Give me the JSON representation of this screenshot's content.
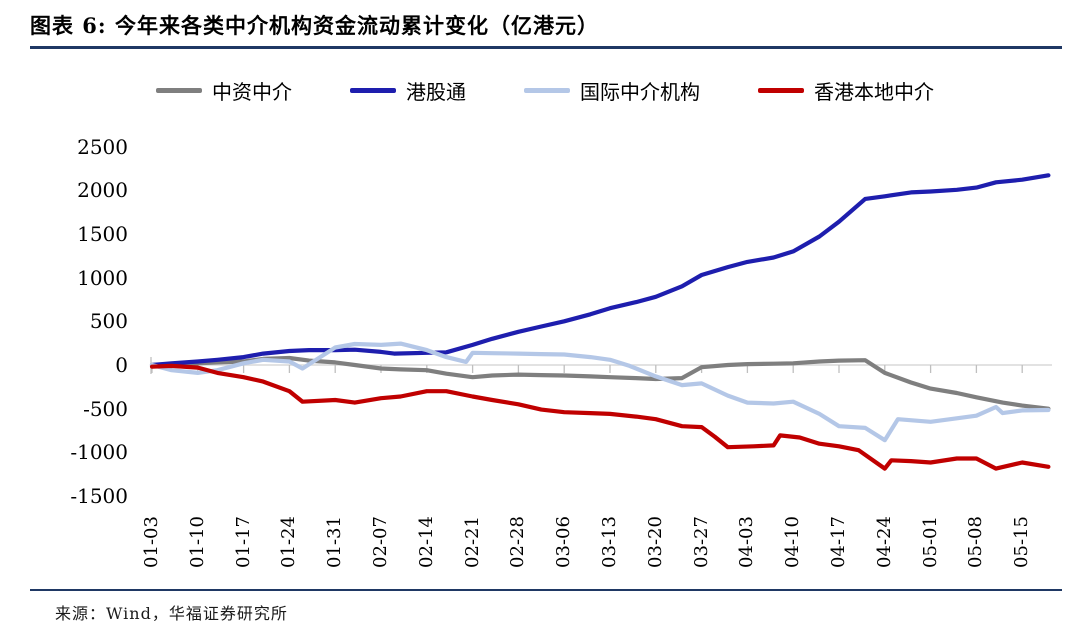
{
  "header": {
    "title": "图表 6:  今年来各类中介机构资金流动累计变化（亿港元）"
  },
  "footer": {
    "source": "来源：Wind，华福证券研究所"
  },
  "colors": {
    "rule_navy": "#1F3864",
    "zero_gridline": "#D9D9D9",
    "tick": "#BFBFBF",
    "background": "#FFFFFF"
  },
  "chart_data": {
    "type": "line",
    "title": "今年来各类中介机构资金流动累计变化",
    "unit": "亿港元",
    "xlabel": "",
    "ylabel": "",
    "ylim": [
      -1500,
      2500
    ],
    "yticks": [
      2500,
      2000,
      1500,
      1000,
      500,
      0,
      -500,
      -1000,
      -1500
    ],
    "x_tick_labels": [
      "01-03",
      "01-10",
      "01-17",
      "01-24",
      "01-31",
      "02-07",
      "02-14",
      "02-21",
      "02-28",
      "03-06",
      "03-13",
      "03-20",
      "03-27",
      "04-03",
      "04-10",
      "04-17",
      "04-24",
      "05-01",
      "05-08",
      "05-15"
    ],
    "grid": "single horizontal gridline at 0 with weekly tick marks",
    "legend_position": "top",
    "series": [
      {
        "name": "中资中介",
        "color": "#7F7F7F",
        "points": [
          [
            "01-03",
            0
          ],
          [
            "01-06",
            10
          ],
          [
            "01-10",
            20
          ],
          [
            "01-13",
            30
          ],
          [
            "01-17",
            40
          ],
          [
            "01-20",
            70
          ],
          [
            "01-24",
            80
          ],
          [
            "01-27",
            50
          ],
          [
            "01-31",
            30
          ],
          [
            "02-03",
            0
          ],
          [
            "02-07",
            -40
          ],
          [
            "02-10",
            -50
          ],
          [
            "02-14",
            -60
          ],
          [
            "02-17",
            -100
          ],
          [
            "02-21",
            -140
          ],
          [
            "02-24",
            -120
          ],
          [
            "02-28",
            -110
          ],
          [
            "03-03",
            -115
          ],
          [
            "03-06",
            -120
          ],
          [
            "03-10",
            -130
          ],
          [
            "03-13",
            -140
          ],
          [
            "03-17",
            -150
          ],
          [
            "03-20",
            -160
          ],
          [
            "03-24",
            -150
          ],
          [
            "03-27",
            -25
          ],
          [
            "03-31",
            0
          ],
          [
            "04-03",
            10
          ],
          [
            "04-07",
            15
          ],
          [
            "04-10",
            20
          ],
          [
            "04-14",
            40
          ],
          [
            "04-17",
            50
          ],
          [
            "04-21",
            55
          ],
          [
            "04-24",
            -90
          ],
          [
            "04-28",
            -200
          ],
          [
            "05-01",
            -270
          ],
          [
            "05-05",
            -320
          ],
          [
            "05-08",
            -370
          ],
          [
            "05-12",
            -430
          ],
          [
            "05-15",
            -465
          ],
          [
            "05-19",
            -500
          ]
        ]
      },
      {
        "name": "港股通",
        "color": "#1E1EAE",
        "points": [
          [
            "01-03",
            0
          ],
          [
            "01-06",
            20
          ],
          [
            "01-10",
            40
          ],
          [
            "01-13",
            60
          ],
          [
            "01-17",
            90
          ],
          [
            "01-20",
            130
          ],
          [
            "01-24",
            160
          ],
          [
            "01-27",
            170
          ],
          [
            "01-31",
            170
          ],
          [
            "02-03",
            175
          ],
          [
            "02-07",
            150
          ],
          [
            "02-09",
            130
          ],
          [
            "02-14",
            140
          ],
          [
            "02-17",
            145
          ],
          [
            "02-21",
            230
          ],
          [
            "02-24",
            300
          ],
          [
            "02-28",
            380
          ],
          [
            "03-03",
            440
          ],
          [
            "03-06",
            500
          ],
          [
            "03-10",
            580
          ],
          [
            "03-13",
            650
          ],
          [
            "03-17",
            720
          ],
          [
            "03-20",
            780
          ],
          [
            "03-24",
            900
          ],
          [
            "03-27",
            1030
          ],
          [
            "03-31",
            1120
          ],
          [
            "04-03",
            1180
          ],
          [
            "04-07",
            1230
          ],
          [
            "04-10",
            1300
          ],
          [
            "04-14",
            1470
          ],
          [
            "04-17",
            1640
          ],
          [
            "04-21",
            1900
          ],
          [
            "04-24",
            1930
          ],
          [
            "04-28",
            1975
          ],
          [
            "05-01",
            1985
          ],
          [
            "05-05",
            2005
          ],
          [
            "05-08",
            2030
          ],
          [
            "05-11",
            2090
          ],
          [
            "05-15",
            2120
          ],
          [
            "05-19",
            2170
          ]
        ]
      },
      {
        "name": "国际中介机构",
        "color": "#B4C7E7",
        "points": [
          [
            "01-03",
            0
          ],
          [
            "01-06",
            -60
          ],
          [
            "01-10",
            -90
          ],
          [
            "01-13",
            -60
          ],
          [
            "01-17",
            20
          ],
          [
            "01-20",
            60
          ],
          [
            "01-24",
            40
          ],
          [
            "01-26",
            -40
          ],
          [
            "01-31",
            200
          ],
          [
            "02-03",
            240
          ],
          [
            "02-07",
            230
          ],
          [
            "02-10",
            245
          ],
          [
            "02-14",
            170
          ],
          [
            "02-17",
            90
          ],
          [
            "02-20",
            35
          ],
          [
            "02-21",
            140
          ],
          [
            "02-24",
            135
          ],
          [
            "02-28",
            130
          ],
          [
            "03-03",
            125
          ],
          [
            "03-06",
            120
          ],
          [
            "03-10",
            90
          ],
          [
            "03-13",
            60
          ],
          [
            "03-16",
            -10
          ],
          [
            "03-20",
            -130
          ],
          [
            "03-24",
            -230
          ],
          [
            "03-27",
            -210
          ],
          [
            "03-31",
            -350
          ],
          [
            "04-03",
            -430
          ],
          [
            "04-07",
            -440
          ],
          [
            "04-10",
            -420
          ],
          [
            "04-14",
            -560
          ],
          [
            "04-17",
            -700
          ],
          [
            "04-21",
            -720
          ],
          [
            "04-24",
            -860
          ],
          [
            "04-26",
            -620
          ],
          [
            "05-01",
            -650
          ],
          [
            "05-05",
            -610
          ],
          [
            "05-08",
            -580
          ],
          [
            "05-11",
            -480
          ],
          [
            "05-12",
            -550
          ],
          [
            "05-15",
            -520
          ],
          [
            "05-19",
            -515
          ]
        ]
      },
      {
        "name": "香港本地中介",
        "color": "#C00000",
        "points": [
          [
            "01-03",
            -20
          ],
          [
            "01-06",
            -10
          ],
          [
            "01-10",
            -30
          ],
          [
            "01-13",
            -90
          ],
          [
            "01-17",
            -140
          ],
          [
            "01-20",
            -190
          ],
          [
            "01-24",
            -300
          ],
          [
            "01-26",
            -420
          ],
          [
            "01-31",
            -400
          ],
          [
            "02-03",
            -430
          ],
          [
            "02-07",
            -380
          ],
          [
            "02-10",
            -360
          ],
          [
            "02-14",
            -300
          ],
          [
            "02-17",
            -300
          ],
          [
            "02-21",
            -360
          ],
          [
            "02-24",
            -400
          ],
          [
            "02-28",
            -450
          ],
          [
            "03-03",
            -510
          ],
          [
            "03-06",
            -540
          ],
          [
            "03-10",
            -550
          ],
          [
            "03-13",
            -560
          ],
          [
            "03-17",
            -590
          ],
          [
            "03-20",
            -620
          ],
          [
            "03-24",
            -700
          ],
          [
            "03-27",
            -710
          ],
          [
            "03-29",
            -820
          ],
          [
            "03-31",
            -940
          ],
          [
            "04-04",
            -930
          ],
          [
            "04-07",
            -920
          ],
          [
            "04-08",
            -805
          ],
          [
            "04-11",
            -830
          ],
          [
            "04-14",
            -900
          ],
          [
            "04-17",
            -930
          ],
          [
            "04-20",
            -975
          ],
          [
            "04-24",
            -1185
          ],
          [
            "04-25",
            -1090
          ],
          [
            "04-28",
            -1100
          ],
          [
            "05-01",
            -1115
          ],
          [
            "05-05",
            -1070
          ],
          [
            "05-08",
            -1070
          ],
          [
            "05-11",
            -1185
          ],
          [
            "05-15",
            -1115
          ],
          [
            "05-19",
            -1165
          ]
        ]
      }
    ]
  }
}
